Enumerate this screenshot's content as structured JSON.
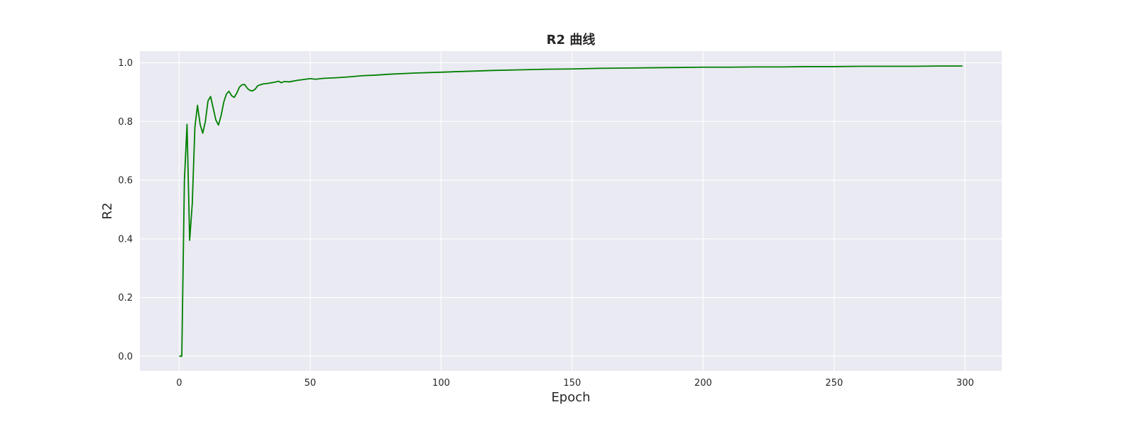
{
  "chart_data": {
    "type": "line",
    "title": "R2 曲线",
    "xlabel": "Epoch",
    "ylabel": "R2",
    "xlim": [
      -15,
      314
    ],
    "ylim": [
      -0.05,
      1.04
    ],
    "xticks": [
      0,
      50,
      100,
      150,
      200,
      250,
      300
    ],
    "yticks": [
      0.0,
      0.2,
      0.4,
      0.6,
      0.8,
      1.0
    ],
    "ytick_labels": [
      "0.0",
      "0.2",
      "0.4",
      "0.6",
      "0.8",
      "1.0"
    ],
    "grid": true,
    "background_color": "#eaeaf2",
    "series": [
      {
        "color": "#008000",
        "points": [
          [
            0,
            0.0
          ],
          [
            1,
            0.0
          ],
          [
            2,
            0.6
          ],
          [
            3,
            0.79
          ],
          [
            4,
            0.395
          ],
          [
            5,
            0.52
          ],
          [
            6,
            0.78
          ],
          [
            7,
            0.855
          ],
          [
            8,
            0.79
          ],
          [
            9,
            0.76
          ],
          [
            10,
            0.8
          ],
          [
            11,
            0.87
          ],
          [
            12,
            0.885
          ],
          [
            13,
            0.845
          ],
          [
            14,
            0.805
          ],
          [
            15,
            0.788
          ],
          [
            16,
            0.82
          ],
          [
            17,
            0.865
          ],
          [
            18,
            0.893
          ],
          [
            19,
            0.903
          ],
          [
            20,
            0.888
          ],
          [
            21,
            0.882
          ],
          [
            22,
            0.897
          ],
          [
            23,
            0.917
          ],
          [
            24,
            0.925
          ],
          [
            25,
            0.926
          ],
          [
            26,
            0.913
          ],
          [
            27,
            0.906
          ],
          [
            28,
            0.904
          ],
          [
            29,
            0.91
          ],
          [
            30,
            0.922
          ],
          [
            32,
            0.928
          ],
          [
            34,
            0.93
          ],
          [
            36,
            0.933
          ],
          [
            38,
            0.937
          ],
          [
            39,
            0.932
          ],
          [
            40,
            0.936
          ],
          [
            42,
            0.935
          ],
          [
            45,
            0.94
          ],
          [
            50,
            0.946
          ],
          [
            52,
            0.944
          ],
          [
            55,
            0.947
          ],
          [
            60,
            0.949
          ],
          [
            65,
            0.952
          ],
          [
            70,
            0.956
          ],
          [
            75,
            0.958
          ],
          [
            80,
            0.961
          ],
          [
            90,
            0.965
          ],
          [
            100,
            0.968
          ],
          [
            110,
            0.971
          ],
          [
            120,
            0.974
          ],
          [
            130,
            0.976
          ],
          [
            140,
            0.978
          ],
          [
            150,
            0.979
          ],
          [
            160,
            0.981
          ],
          [
            170,
            0.982
          ],
          [
            180,
            0.983
          ],
          [
            190,
            0.984
          ],
          [
            200,
            0.985
          ],
          [
            210,
            0.985
          ],
          [
            220,
            0.986
          ],
          [
            230,
            0.986
          ],
          [
            240,
            0.987
          ],
          [
            250,
            0.987
          ],
          [
            260,
            0.988
          ],
          [
            270,
            0.988
          ],
          [
            280,
            0.988
          ],
          [
            290,
            0.989
          ],
          [
            299,
            0.989
          ]
        ]
      }
    ]
  }
}
